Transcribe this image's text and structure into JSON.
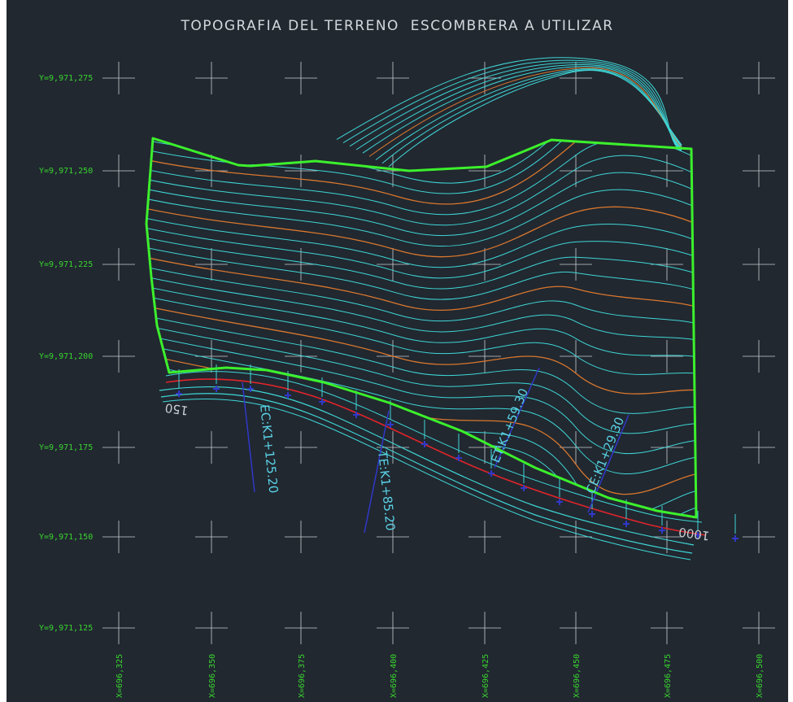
{
  "title": "TOPOGRAFIA DEL TERRENO  ESCOMBRERA A UTILIZAR",
  "colors": {
    "background": "#212830",
    "grid": "#c9cdd2",
    "coord_label": "#39d52e",
    "boundary": "#3cf02c",
    "contour_minor": "#3fd6d6",
    "contour_major": "#d9772e",
    "axis_road": "#e0242a",
    "station_marker": "#3038c8",
    "station_text": "#5ad2e6"
  },
  "y_labels": [
    "Y=9,971,275",
    "Y=9,971,250",
    "Y=9,971,225",
    "Y=9,971,200",
    "Y=9,971,175",
    "Y=9,971,150",
    "Y=9,971,125"
  ],
  "x_labels": [
    "X=696,325",
    "X=696,350",
    "X=696,375",
    "X=696,400",
    "X=696,425",
    "X=696,450",
    "X=696,475",
    "X=696,500"
  ],
  "stations": {
    "ec": "EC:K1+125.20",
    "te": "TE:K1+85.20",
    "et": "ET:K1+59.30",
    "ce": "CE:K1+29.30"
  },
  "chainage": {
    "start": "150",
    "end": "1000"
  }
}
